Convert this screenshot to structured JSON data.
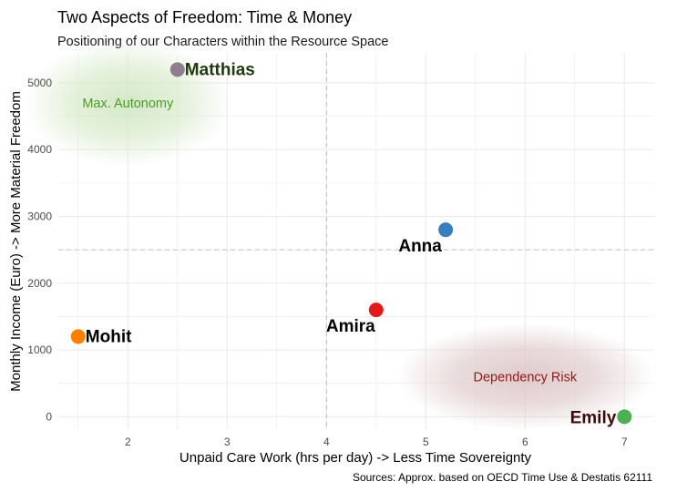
{
  "title": "Two Aspects of Freedom: Time & Money",
  "subtitle": "Positioning of our Characters within the Resource Space",
  "caption": "Sources: Approx. based on OECD Time Use & Destatis 62111",
  "colors": {
    "grid": "#ebebeb",
    "reference_line": "#bdbdbd",
    "autonomy_zone": "#cfe6c0",
    "autonomy_text": "#4d9a2a",
    "risk_zone": "#dcc5c5",
    "risk_text": "#8b1a1a"
  },
  "chart_data": {
    "type": "scatter",
    "title": "Two Aspects of Freedom: Time & Money",
    "subtitle": "Positioning of our Characters within the Resource Space",
    "xlabel": "Unpaid Care Work (hrs per day) -> Less Time Sovereignty",
    "ylabel": "Monthly Income (Euro) -> More Material Freedom",
    "xlim": [
      1.3,
      7.3
    ],
    "ylim": [
      -200,
      5450
    ],
    "x_ticks": [
      2,
      3,
      4,
      5,
      6,
      7
    ],
    "y_ticks": [
      0,
      1000,
      2000,
      3000,
      4000,
      5000
    ],
    "grid": true,
    "reference_lines": {
      "x": 4,
      "y": 2500
    },
    "points": [
      {
        "name": "Matthias",
        "x": 2.5,
        "y": 5200,
        "color": "#8e7f8f",
        "label_color": "#1f3a10",
        "label_side": "right"
      },
      {
        "name": "Anna",
        "x": 5.2,
        "y": 2800,
        "color": "#3a7fbd",
        "label_color": "#000000",
        "label_side": "below-left"
      },
      {
        "name": "Amira",
        "x": 4.5,
        "y": 1600,
        "color": "#e31a1c",
        "label_color": "#000000",
        "label_side": "below-left"
      },
      {
        "name": "Mohit",
        "x": 1.5,
        "y": 1200,
        "color": "#ff7f00",
        "label_color": "#000000",
        "label_side": "right"
      },
      {
        "name": "Emily",
        "x": 7.0,
        "y": 0,
        "color": "#4caf50",
        "label_color": "#3d0a0a",
        "label_side": "left"
      }
    ],
    "zones": [
      {
        "label": "Max. Autonomy",
        "x": 2.0,
        "y": 4700,
        "rx": 1.05,
        "ry": 950,
        "fill": "#cfe6c0",
        "text_color": "#4d9a2a"
      },
      {
        "label": "Dependency Risk",
        "x": 6.0,
        "y": 600,
        "rx": 1.3,
        "ry": 800,
        "fill": "#dcc5c5",
        "text_color": "#8b1a1a"
      }
    ]
  }
}
